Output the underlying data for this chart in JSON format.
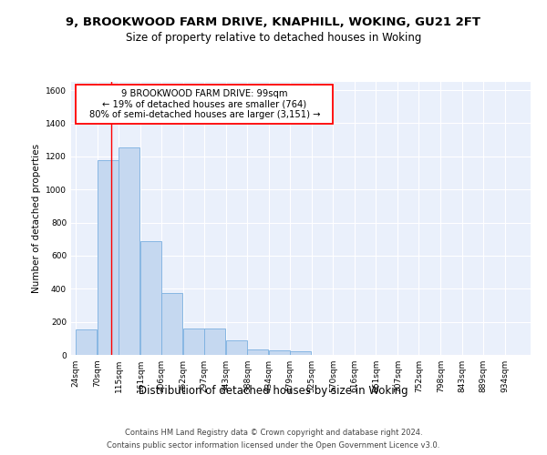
{
  "title1": "9, BROOKWOOD FARM DRIVE, KNAPHILL, WOKING, GU21 2FT",
  "title2": "Size of property relative to detached houses in Woking",
  "xlabel": "Distribution of detached houses by size in Woking",
  "ylabel": "Number of detached properties",
  "bar_labels": [
    "24sqm",
    "70sqm",
    "115sqm",
    "161sqm",
    "206sqm",
    "252sqm",
    "297sqm",
    "343sqm",
    "388sqm",
    "434sqm",
    "479sqm",
    "525sqm",
    "570sqm",
    "616sqm",
    "661sqm",
    "707sqm",
    "752sqm",
    "798sqm",
    "843sqm",
    "889sqm",
    "934sqm"
  ],
  "bar_values": [
    155,
    1175,
    1255,
    685,
    375,
    160,
    160,
    90,
    35,
    25,
    20,
    0,
    0,
    0,
    0,
    0,
    0,
    0,
    0,
    0,
    0
  ],
  "bar_color": "#c5d8f0",
  "bar_edge_color": "#7aafe0",
  "background_color": "#eaf0fb",
  "grid_color": "#ffffff",
  "ann_line1": "9 BROOKWOOD FARM DRIVE: 99sqm",
  "ann_line2": "← 19% of detached houses are smaller (764)",
  "ann_line3": "80% of semi-detached houses are larger (3,151) →",
  "red_line_x": 99,
  "bin_width": 45,
  "ylim": [
    0,
    1650
  ],
  "yticks": [
    0,
    200,
    400,
    600,
    800,
    1000,
    1200,
    1400,
    1600
  ],
  "footer1": "Contains HM Land Registry data © Crown copyright and database right 2024.",
  "footer2": "Contains public sector information licensed under the Open Government Licence v3.0."
}
